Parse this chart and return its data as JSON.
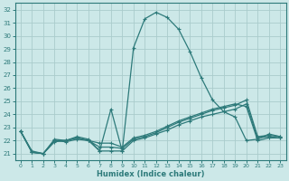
{
  "bg_color": "#cce8e8",
  "grid_color": "#aacccc",
  "line_color": "#2d7a7a",
  "xlabel": "Humidex (Indice chaleur)",
  "xlim": [
    -0.5,
    23.5
  ],
  "ylim": [
    20.5,
    32.5
  ],
  "yticks": [
    21,
    22,
    23,
    24,
    25,
    26,
    27,
    28,
    29,
    30,
    31,
    32
  ],
  "xticks": [
    0,
    1,
    2,
    3,
    4,
    5,
    6,
    7,
    8,
    9,
    10,
    11,
    12,
    13,
    14,
    15,
    16,
    17,
    18,
    19,
    20,
    21,
    22,
    23
  ],
  "series1": {
    "x": [
      0,
      1,
      2,
      3,
      4,
      5,
      6,
      7,
      8,
      9,
      10,
      11,
      12,
      13,
      14,
      15,
      16,
      17,
      18,
      19,
      20,
      21,
      22,
      23
    ],
    "y": [
      22.7,
      21.2,
      21.0,
      22.1,
      22.0,
      22.3,
      22.1,
      21.2,
      24.4,
      21.2,
      29.1,
      31.3,
      31.8,
      31.4,
      30.5,
      28.8,
      26.8,
      25.1,
      24.2,
      23.8,
      22.0,
      22.1,
      22.5,
      22.3
    ]
  },
  "series2": {
    "x": [
      0,
      1,
      2,
      3,
      4,
      5,
      6,
      7,
      8,
      9,
      10,
      11,
      12,
      13,
      14,
      15,
      16,
      17,
      18,
      19,
      20,
      21,
      22,
      23
    ],
    "y": [
      22.7,
      21.1,
      21.0,
      22.0,
      21.9,
      22.1,
      22.0,
      21.2,
      21.2,
      21.2,
      22.0,
      22.2,
      22.5,
      22.8,
      23.2,
      23.5,
      23.8,
      24.0,
      24.2,
      24.4,
      24.8,
      22.2,
      22.3,
      22.2
    ]
  },
  "series3": {
    "x": [
      0,
      1,
      2,
      3,
      4,
      5,
      6,
      7,
      8,
      9,
      10,
      11,
      12,
      13,
      14,
      15,
      16,
      17,
      18,
      19,
      20,
      21,
      22,
      23
    ],
    "y": [
      22.7,
      21.1,
      21.0,
      21.9,
      22.0,
      22.2,
      22.0,
      21.5,
      21.5,
      21.4,
      22.1,
      22.3,
      22.6,
      23.0,
      23.4,
      23.7,
      24.0,
      24.3,
      24.5,
      24.7,
      25.1,
      22.3,
      22.4,
      22.3
    ]
  },
  "series4": {
    "x": [
      0,
      1,
      2,
      3,
      4,
      5,
      6,
      7,
      8,
      9,
      10,
      11,
      12,
      13,
      14,
      15,
      16,
      17,
      18,
      19,
      20,
      21,
      22,
      23
    ],
    "y": [
      22.7,
      21.1,
      21.0,
      22.0,
      22.0,
      22.2,
      22.0,
      21.8,
      21.8,
      21.5,
      22.2,
      22.4,
      22.7,
      23.1,
      23.5,
      23.8,
      24.1,
      24.4,
      24.6,
      24.8,
      24.6,
      22.0,
      22.2,
      22.2
    ]
  }
}
